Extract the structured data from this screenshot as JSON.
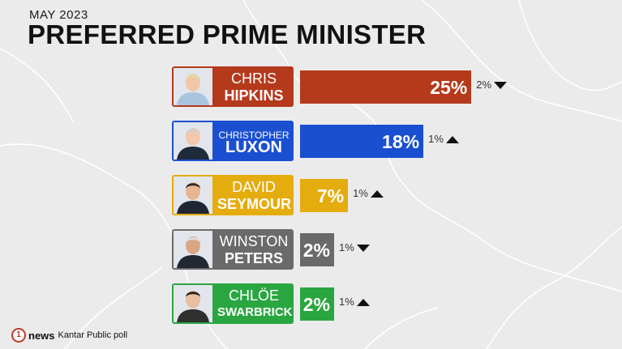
{
  "header": {
    "date": "MAY 2023",
    "title": "PREFERRED PRIME MINISTER"
  },
  "footer": {
    "logo_text": "1",
    "brand": "news",
    "source": "Kantar Public poll"
  },
  "chart_data": {
    "type": "bar",
    "orientation": "horizontal",
    "title": "PREFERRED PRIME MINISTER",
    "subtitle": "MAY 2023",
    "categories": [
      "CHRIS HIPKINS",
      "CHRISTOPHER LUXON",
      "DAVID SEYMOUR",
      "WINSTON PETERS",
      "CHLÖE SWARBRICK"
    ],
    "values": [
      25,
      18,
      7,
      2,
      2
    ],
    "unit": "%",
    "items": [
      {
        "first": "CHRIS",
        "last": "HIPKINS",
        "value": 25,
        "value_label": "25%",
        "change_label": "2%",
        "direction": "down",
        "color": "#b5391b"
      },
      {
        "first": "CHRISTOPHER",
        "last": "LUXON",
        "value": 18,
        "value_label": "18%",
        "change_label": "1%",
        "direction": "up",
        "color": "#1a4fd1"
      },
      {
        "first": "DAVID",
        "last": "SEYMOUR",
        "value": 7,
        "value_label": "7%",
        "change_label": "1%",
        "direction": "up",
        "color": "#e5ac0e"
      },
      {
        "first": "WINSTON",
        "last": "PETERS",
        "value": 2,
        "value_label": "2%",
        "change_label": "1%",
        "direction": "down",
        "color": "#6a6a6a"
      },
      {
        "first": "CHLÖE",
        "last": "SWARBRICK",
        "value": 2,
        "value_label": "2%",
        "change_label": "1%",
        "direction": "up",
        "color": "#2aa641"
      }
    ]
  }
}
